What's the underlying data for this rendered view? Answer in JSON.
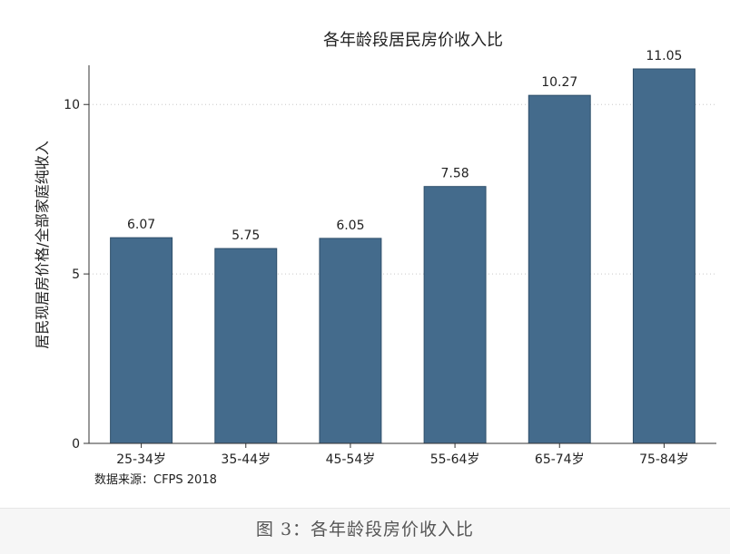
{
  "chart_data": {
    "type": "bar",
    "title": "各年龄段居民房价收入比",
    "ylabel": "居民现居房价格/全部家庭纯收入",
    "xlabel": "",
    "categories": [
      "25-34岁",
      "35-44岁",
      "45-54岁",
      "55-64岁",
      "65-74岁",
      "75-84岁"
    ],
    "values": [
      6.07,
      5.75,
      6.05,
      7.58,
      10.27,
      11.05
    ],
    "value_labels": [
      "6.07",
      "5.75",
      "6.05",
      "7.58",
      "10.27",
      "11.05"
    ],
    "ylim": [
      0,
      11.05
    ],
    "yticks": [
      0,
      5,
      10
    ],
    "ytick_labels": [
      "0",
      "5",
      "10"
    ],
    "grid": "horizontal dotted",
    "bar_color": "#446b8c",
    "source_note": "数据来源：CFPS 2018"
  },
  "caption": "图 3：各年龄段房价收入比"
}
